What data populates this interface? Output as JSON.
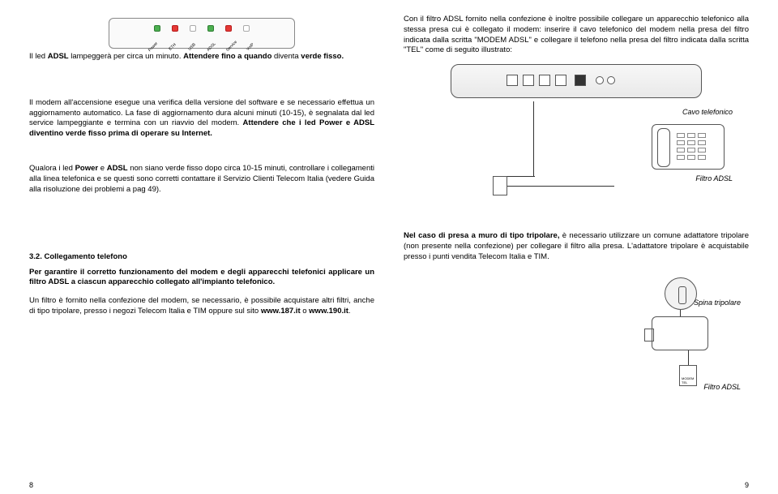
{
  "leds": {
    "labels": [
      "Power",
      "ETH",
      "USB",
      "ADSL",
      "Service",
      "VoIP"
    ],
    "colors": [
      "green",
      "red",
      "off",
      "green",
      "red",
      "off"
    ]
  },
  "left": {
    "p1_a": "Il led ",
    "p1_b": "ADSL",
    "p1_c": " lampeggerà per circa un minuto. ",
    "p1_d": "Attendere fino a quando",
    "p1_e": " diventa ",
    "p1_f": "verde fisso.",
    "p2_a": "Il modem all'accensione esegue una verifica della versione del software e se necessario effettua un aggiornamento automatico. La fase di aggiornamento dura alcuni minuti (10-15), è segnalata dal led service lampeggiante e termina con un riavvio del modem. ",
    "p2_b": "Attendere che i led Power e ADSL diventino verde fisso prima di operare su Internet.",
    "p3_a": "Qualora i led ",
    "p3_b": "Power",
    "p3_c": " e ",
    "p3_d": "ADSL",
    "p3_e": " non siano verde fisso dopo circa 10-15 minuti, controllare i collegamenti alla linea telefonica e se questi sono corretti contattare il Servizio Clienti Telecom Italia (vedere Guida alla risoluzione dei problemi a pag 49).",
    "section": "3.2. Collegamento telefono",
    "p4": "Per garantire il corretto funzionamento del modem e degli apparecchi telefonici applicare un filtro ADSL a ciascun apparecchio collegato all'impianto telefonico.",
    "p5_a": "Un filtro è fornito nella confezione del modem, se necessario, è possibile acquistare altri filtri, anche di tipo tripolare, presso i negozi Telecom Italia e TIM oppure sul sito ",
    "p5_b": "www.187.it",
    "p5_c": " o ",
    "p5_d": "www.190.it",
    "p5_e": "."
  },
  "right": {
    "p1": "Con il filtro ADSL fornito nella confezione è inoltre possibile collegare un apparecchio telefonico alla stessa presa cui è collegato il modem: inserire il cavo telefonico del modem nella presa del filtro indicata dalla scritta \"MODEM ADSL\" e collegare il telefono nella presa del filtro indicata dalla scritta \"TEL\" come di seguito illustrato:",
    "cavo": "Cavo telefonico",
    "filtro": "Filtro ADSL",
    "p2_a": "Nel caso di presa a muro di tipo tripolare,",
    "p2_b": " è necessario utilizzare un comune adattatore tripolare (non presente nella confezione) per collegare il filtro alla presa. L'adattatore tripolare è acquistabile presso i punti vendita Telecom Italia e TIM.",
    "spina": "Spina tripolare",
    "filtro2": "Filtro ADSL"
  },
  "pagenum_left": "8",
  "pagenum_right": "9"
}
